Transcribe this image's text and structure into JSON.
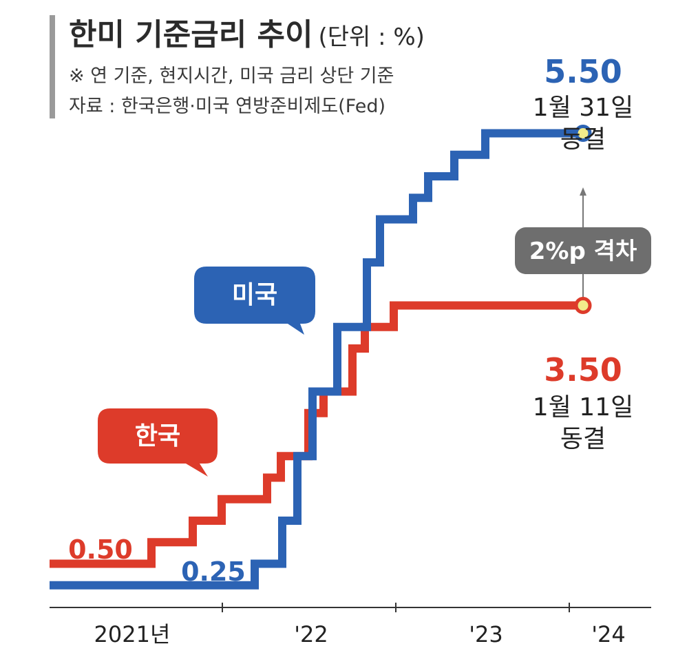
{
  "header": {
    "title": "한미 기준금리 추이",
    "unit": "(단위 : %)",
    "note": "※ 연 기준, 현지시간, 미국 금리 상단 기준",
    "source": "자료 : 한국은행·미국 연방준비제도(Fed)"
  },
  "colors": {
    "us": "#2c63b4",
    "korea": "#dd3b2a",
    "gap": "#6e6e6e",
    "marker_fill": "#f2eb8a"
  },
  "chart_data": {
    "type": "line",
    "step": true,
    "title": "한미 기준금리 추이",
    "ylabel": "%",
    "ylim": [
      0,
      6
    ],
    "x_ticks": [
      "2021년",
      "'22",
      "'23",
      "'24"
    ],
    "series": [
      {
        "name": "미국",
        "start_label": "0.25",
        "values": [
          0.25,
          0.5,
          1.0,
          1.75,
          2.5,
          3.25,
          4.0,
          4.5,
          4.75,
          5.0,
          5.25,
          5.5,
          5.5
        ]
      },
      {
        "name": "한국",
        "start_label": "0.50",
        "values": [
          0.5,
          0.75,
          1.0,
          1.25,
          1.5,
          1.75,
          2.25,
          2.5,
          3.0,
          3.25,
          3.5,
          3.5
        ]
      }
    ],
    "annotations": {
      "us_end_value": "5.50",
      "us_end_date": "1월 31일",
      "us_end_status": "동결",
      "kr_end_value": "3.50",
      "kr_end_date": "1월 11일",
      "kr_end_status": "동결",
      "gap_label": "2%p 격차",
      "us_bubble": "미국",
      "kr_bubble": "한국"
    }
  }
}
